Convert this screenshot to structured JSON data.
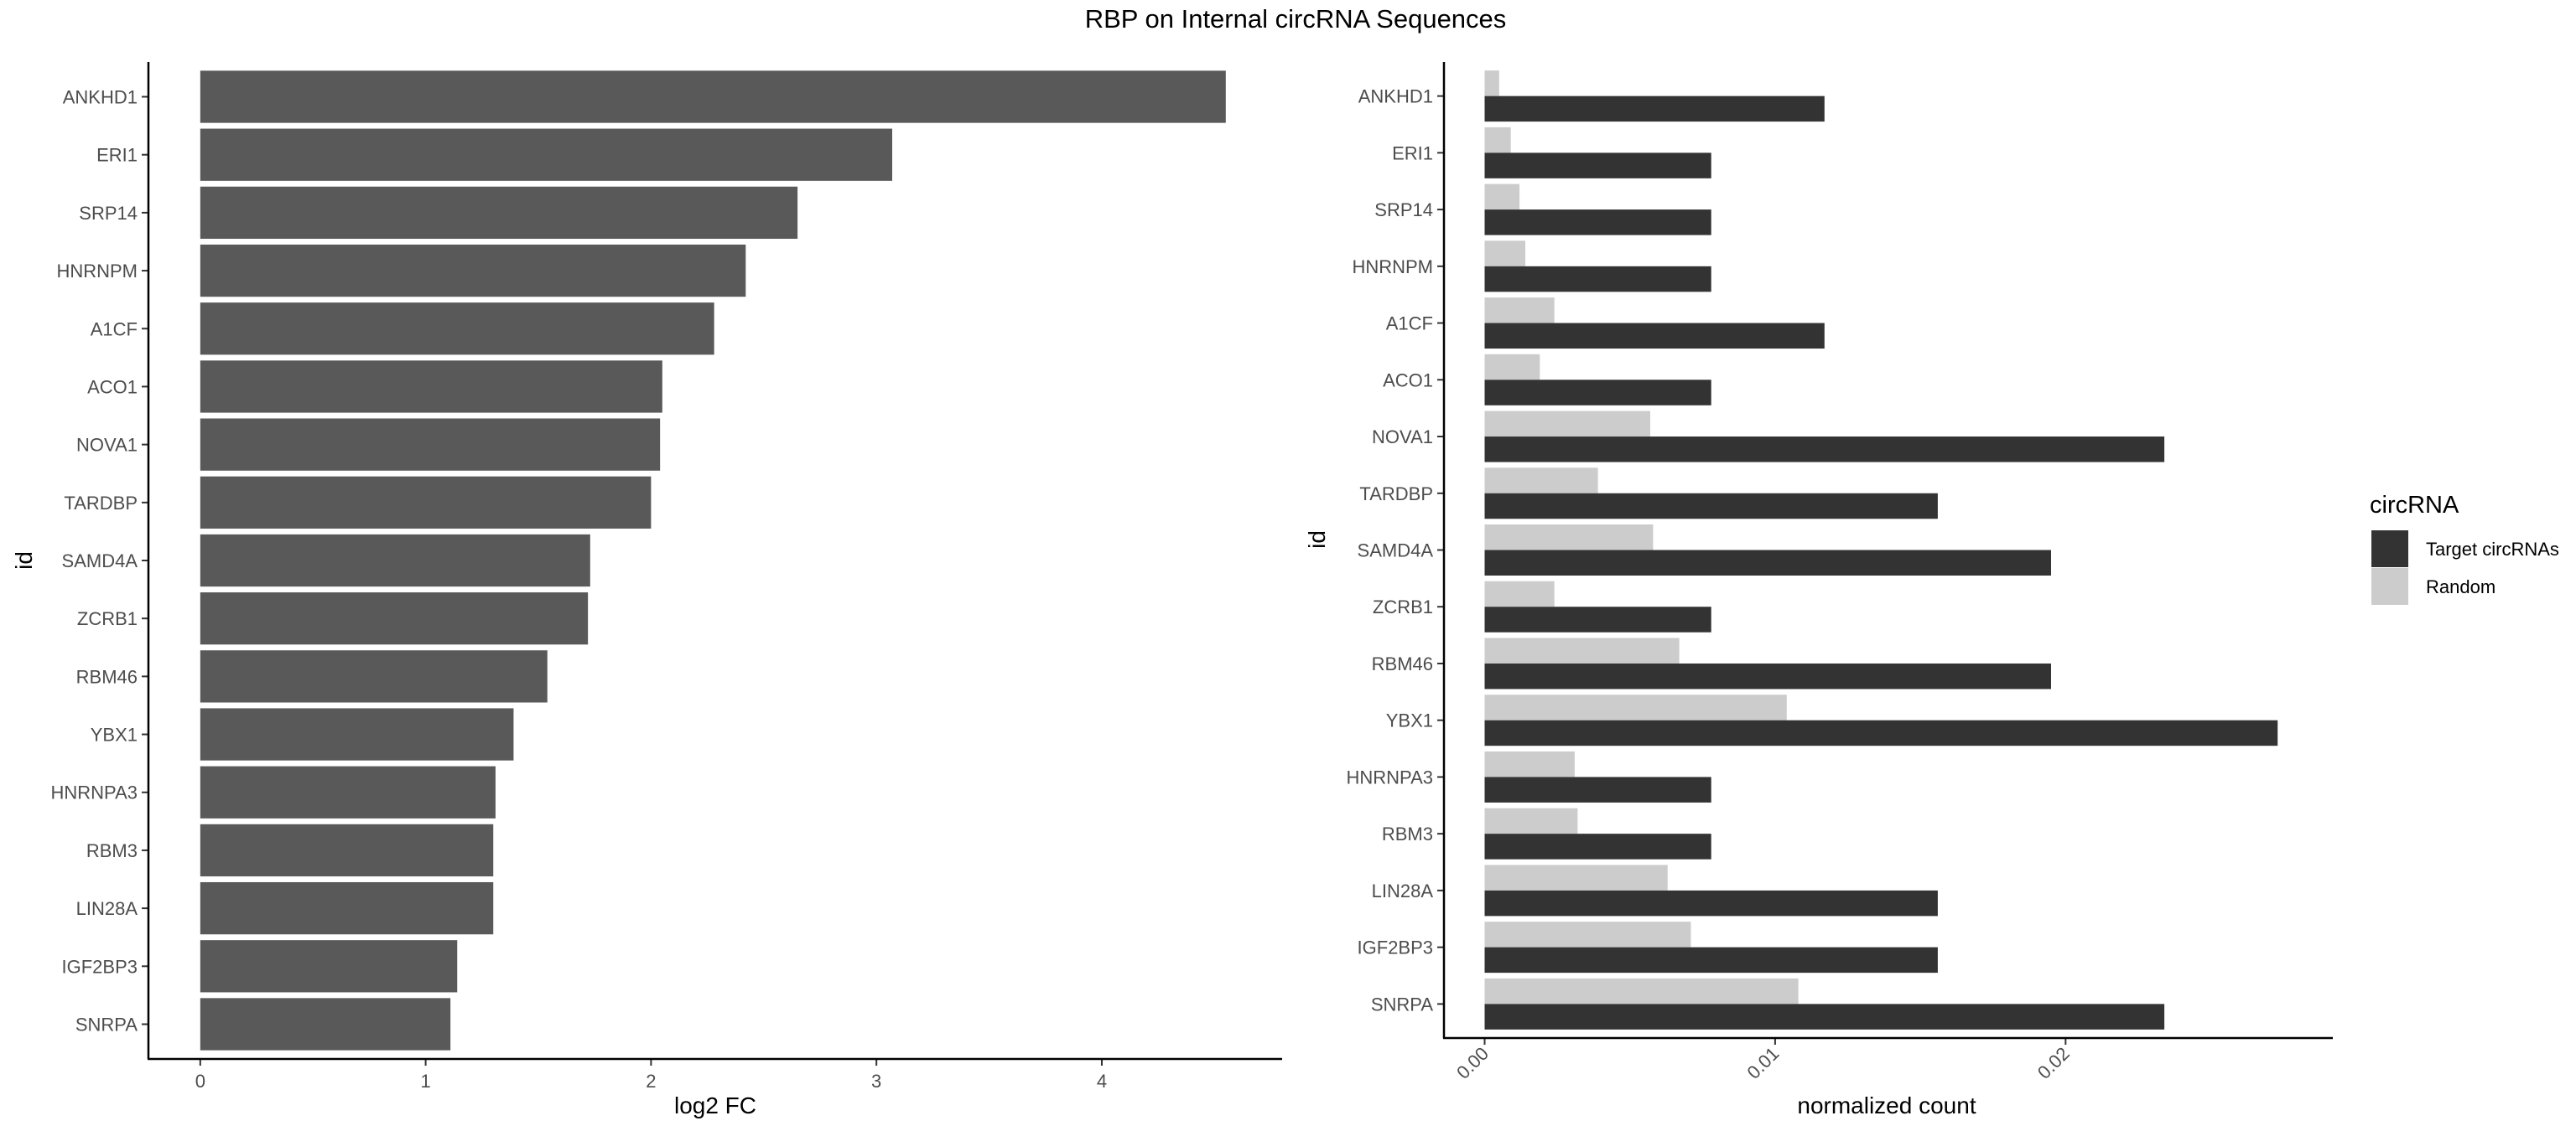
{
  "title": "RBP on Internal circRNA Sequences",
  "chart_data": [
    {
      "type": "bar",
      "orientation": "horizontal",
      "xlabel": "log2 FC",
      "ylabel": "id",
      "xlim": [
        -0.23,
        4.8
      ],
      "xticks": [
        "0",
        "1",
        "2",
        "3",
        "4"
      ],
      "xtick_values": [
        0,
        1,
        2,
        3,
        4
      ],
      "categories": [
        "ANKHD1",
        "ERI1",
        "SRP14",
        "HNRNPM",
        "A1CF",
        "ACO1",
        "NOVA1",
        "TARDBP",
        "SAMD4A",
        "ZCRB1",
        "RBM46",
        "YBX1",
        "HNRNPA3",
        "RBM3",
        "LIN28A",
        "IGF2BP3",
        "SNRPA"
      ],
      "values": [
        4.55,
        3.07,
        2.65,
        2.42,
        2.28,
        2.05,
        2.04,
        2.0,
        1.73,
        1.72,
        1.54,
        1.39,
        1.31,
        1.3,
        1.3,
        1.14,
        1.11
      ],
      "bar_color": "#595959",
      "grid": false
    },
    {
      "type": "bar",
      "orientation": "horizontal",
      "grouped": true,
      "xlabel": "normalized count",
      "ylabel": "id",
      "xlim": [
        -0.0014,
        0.0292
      ],
      "xticks": [
        "0.00",
        "0.01",
        "0.02"
      ],
      "xtick_values": [
        0,
        0.01,
        0.02
      ],
      "categories": [
        "ANKHD1",
        "ERI1",
        "SRP14",
        "HNRNPM",
        "A1CF",
        "ACO1",
        "NOVA1",
        "TARDBP",
        "SAMD4A",
        "ZCRB1",
        "RBM46",
        "YBX1",
        "HNRNPA3",
        "RBM3",
        "LIN28A",
        "IGF2BP3",
        "SNRPA"
      ],
      "series": [
        {
          "name": "Target circRNAs",
          "color": "#333333",
          "values": [
            0.0117,
            0.0078,
            0.0078,
            0.0078,
            0.0117,
            0.0078,
            0.0234,
            0.0156,
            0.0195,
            0.0078,
            0.0195,
            0.0273,
            0.0078,
            0.0078,
            0.0156,
            0.0156,
            0.0234
          ]
        },
        {
          "name": "Random",
          "color": "#cccccc",
          "values": [
            0.0005,
            0.0009,
            0.0012,
            0.0014,
            0.0024,
            0.0019,
            0.0057,
            0.0039,
            0.0058,
            0.0024,
            0.0067,
            0.0104,
            0.0031,
            0.0032,
            0.0063,
            0.0071,
            0.0108
          ]
        }
      ],
      "legend": {
        "title": "circRNA",
        "position": "right"
      },
      "grid": false
    }
  ]
}
